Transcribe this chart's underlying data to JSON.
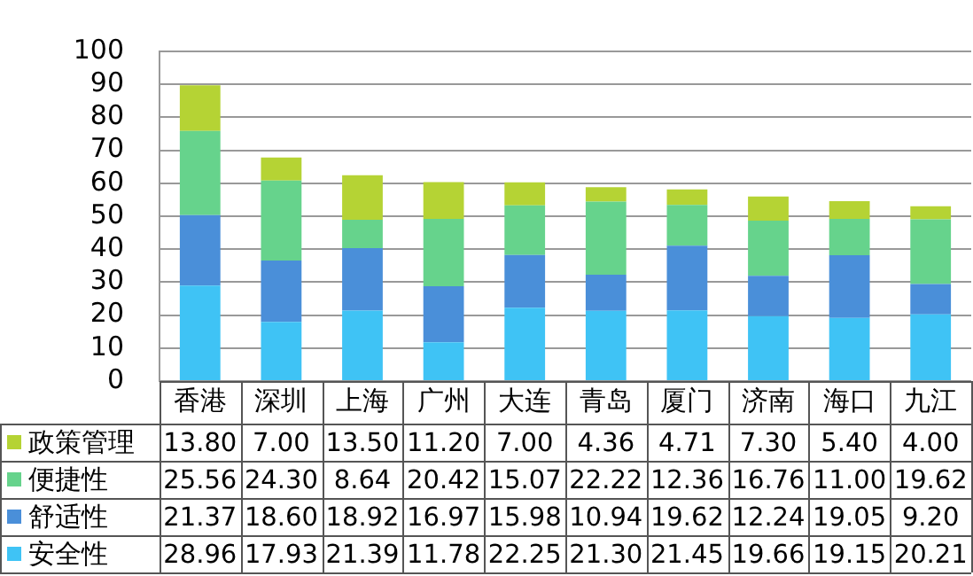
{
  "chart_data": {
    "type": "bar",
    "stacked": true,
    "categories": [
      "香港",
      "深圳",
      "上海",
      "广州",
      "大连",
      "青岛",
      "厦门",
      "济南",
      "海口",
      "九江"
    ],
    "series": [
      {
        "name": "安全性",
        "color": "#3fc3f5",
        "values": [
          28.96,
          17.93,
          21.39,
          11.78,
          22.25,
          21.3,
          21.45,
          19.66,
          19.15,
          20.21
        ],
        "value_labels": [
          "28.96",
          "17.93",
          "21.39",
          "11.78",
          "22.25",
          "21.30",
          "21.45",
          "19.66",
          "19.15",
          "20.21"
        ]
      },
      {
        "name": "舒适性",
        "color": "#4a8fd9",
        "values": [
          21.37,
          18.6,
          18.92,
          16.97,
          15.98,
          10.94,
          19.62,
          12.24,
          19.05,
          9.2
        ],
        "value_labels": [
          "21.37",
          "18.60",
          "18.92",
          "16.97",
          "15.98",
          "10.94",
          "19.62",
          "12.24",
          "19.05",
          "9.20"
        ]
      },
      {
        "name": "便捷性",
        "color": "#66d38c",
        "values": [
          25.56,
          24.3,
          8.64,
          20.42,
          15.07,
          22.22,
          12.36,
          16.76,
          11.0,
          19.62
        ],
        "value_labels": [
          "25.56",
          "24.30",
          "8.64",
          "20.42",
          "15.07",
          "22.22",
          "12.36",
          "16.76",
          "11.00",
          "19.62"
        ]
      },
      {
        "name": "政策管理",
        "color": "#b5d334",
        "values": [
          13.8,
          7.0,
          13.5,
          11.2,
          7.0,
          4.36,
          4.71,
          7.3,
          5.4,
          4.0
        ],
        "value_labels": [
          "13.80",
          "7.00",
          "13.50",
          "11.20",
          "7.00",
          "4.36",
          "4.71",
          "7.30",
          "5.40",
          "4.00"
        ]
      }
    ],
    "ylim": [
      0,
      100
    ],
    "yticks": [
      0,
      10,
      20,
      30,
      40,
      50,
      60,
      70,
      80,
      90,
      100
    ],
    "grid": "y",
    "legend": "bottom"
  }
}
